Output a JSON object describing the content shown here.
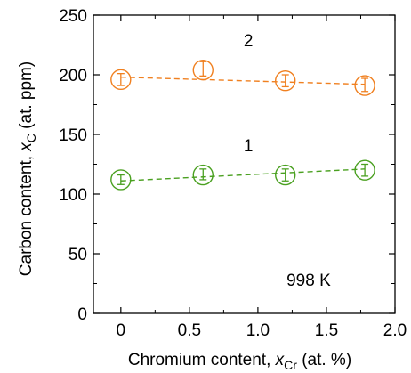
{
  "chart_data": {
    "type": "scatter",
    "xlabel": "Chromium content, x_Cr (at. %)",
    "xlabel_parts": {
      "before": "Chromium content, ",
      "var": "x",
      "sub": "Cr",
      "after": " (at. %)"
    },
    "ylabel": "Carbon content, x_C (at. ppm)",
    "ylabel_parts": {
      "before": "Carbon content, ",
      "var": "x",
      "sub": "C",
      "after": " (at. ppm)"
    },
    "xlim": [
      -0.2,
      2.0
    ],
    "ylim": [
      0,
      250
    ],
    "xticks": [
      "0",
      "0.5",
      "1.0",
      "1.5",
      "2.0"
    ],
    "xtick_values": [
      0,
      0.5,
      1.0,
      1.5,
      2.0
    ],
    "yticks": [
      "0",
      "50",
      "100",
      "150",
      "200",
      "250"
    ],
    "ytick_values": [
      0,
      50,
      100,
      150,
      200,
      250
    ],
    "grid": false,
    "annotations": [
      "998 K"
    ],
    "series": [
      {
        "label": "2",
        "color": "#f08020",
        "x": [
          0,
          0.6,
          1.2,
          1.78
        ],
        "y": [
          196,
          204,
          195,
          191
        ],
        "err_low": [
          191,
          199,
          190,
          186
        ],
        "err_high": [
          201,
          211,
          200,
          197
        ],
        "fit": {
          "x0": 0,
          "y0": 198,
          "x1": 1.78,
          "y1": 192
        }
      },
      {
        "label": "1",
        "color": "#4aa020",
        "x": [
          0,
          0.6,
          1.2,
          1.78
        ],
        "y": [
          112,
          116,
          116,
          120
        ],
        "err_low": [
          108,
          112,
          111,
          115
        ],
        "err_high": [
          116,
          121,
          121,
          125
        ],
        "fit": {
          "x0": 0,
          "y0": 111,
          "x1": 1.78,
          "y1": 121
        }
      }
    ]
  }
}
